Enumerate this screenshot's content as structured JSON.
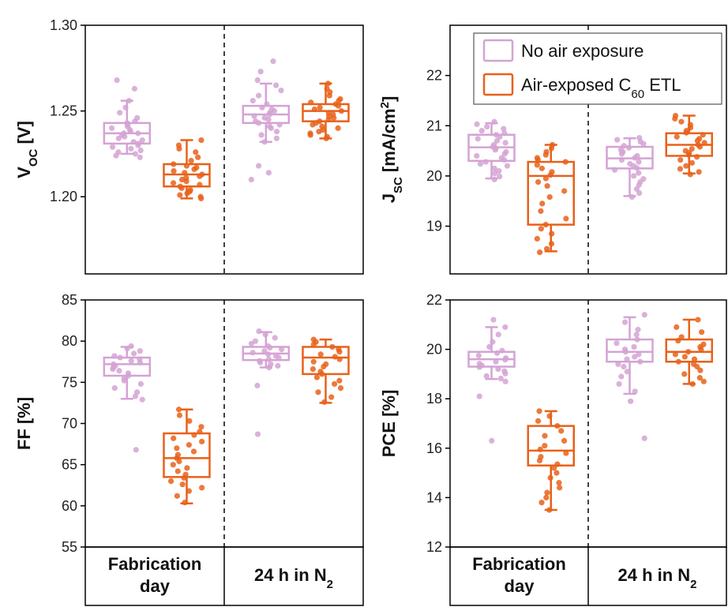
{
  "colors": {
    "no_air": "#d4a3d4",
    "air_exposed": "#e8611a",
    "axis": "#000000"
  },
  "legend": {
    "items": [
      {
        "key": "no_air",
        "label": "No air exposure"
      },
      {
        "key": "air_exposed",
        "label_pre": "Air-exposed C",
        "label_sub": "60",
        "label_post": " ETL"
      }
    ]
  },
  "x_categories": [
    {
      "line1": "Fabrication",
      "line2": "day"
    },
    {
      "line1": "24 h in N",
      "sub": "2"
    }
  ],
  "chart_data": [
    {
      "id": "voc",
      "type": "box",
      "ylabel_main": "V",
      "ylabel_sub": "OC",
      "ylabel_post": " [V]",
      "ylim": [
        1.155,
        1.3
      ],
      "yticks": [
        1.2,
        1.25,
        1.3
      ],
      "ytick_labels": [
        "1.20",
        "1.25",
        "1.30"
      ],
      "groups": [
        {
          "series": "no_air",
          "condition": 0,
          "min": 1.225,
          "q1": 1.231,
          "median": 1.237,
          "q3": 1.243,
          "max": 1.256,
          "points": [
            1.268,
            1.263,
            1.256,
            1.252,
            1.249,
            1.246,
            1.244,
            1.243,
            1.242,
            1.241,
            1.24,
            1.239,
            1.238,
            1.237,
            1.237,
            1.236,
            1.235,
            1.234,
            1.233,
            1.232,
            1.231,
            1.23,
            1.229,
            1.228,
            1.227,
            1.226,
            1.225,
            1.224,
            1.223
          ]
        },
        {
          "series": "air_exposed",
          "condition": 0,
          "min": 1.199,
          "q1": 1.206,
          "median": 1.213,
          "q3": 1.219,
          "max": 1.233,
          "points": [
            1.233,
            1.23,
            1.228,
            1.226,
            1.223,
            1.221,
            1.219,
            1.218,
            1.217,
            1.216,
            1.215,
            1.214,
            1.213,
            1.212,
            1.211,
            1.21,
            1.209,
            1.208,
            1.207,
            1.206,
            1.205,
            1.204,
            1.203,
            1.202,
            1.201,
            1.2,
            1.199
          ]
        },
        {
          "series": "no_air",
          "condition": 1,
          "min": 1.232,
          "q1": 1.243,
          "median": 1.248,
          "q3": 1.253,
          "max": 1.266,
          "points": [
            1.279,
            1.273,
            1.268,
            1.265,
            1.262,
            1.259,
            1.256,
            1.254,
            1.252,
            1.251,
            1.25,
            1.249,
            1.248,
            1.247,
            1.246,
            1.245,
            1.244,
            1.243,
            1.242,
            1.241,
            1.24,
            1.238,
            1.236,
            1.234,
            1.232,
            1.218,
            1.214,
            1.21
          ]
        },
        {
          "series": "air_exposed",
          "condition": 1,
          "min": 1.234,
          "q1": 1.244,
          "median": 1.25,
          "q3": 1.254,
          "max": 1.266,
          "points": [
            1.266,
            1.263,
            1.261,
            1.259,
            1.257,
            1.256,
            1.255,
            1.254,
            1.253,
            1.252,
            1.251,
            1.25,
            1.249,
            1.248,
            1.247,
            1.246,
            1.245,
            1.244,
            1.243,
            1.242,
            1.241,
            1.24,
            1.239,
            1.238,
            1.237,
            1.236,
            1.235,
            1.234
          ]
        }
      ]
    },
    {
      "id": "jsc",
      "type": "box",
      "ylabel_main": "J",
      "ylabel_sub": "SC",
      "ylabel_post": " [mA/cm",
      "ylabel_sup": "2",
      "ylabel_end": "]",
      "ylim": [
        18.05,
        23.0
      ],
      "yticks": [
        19,
        20,
        21,
        22
      ],
      "ytick_labels": [
        "19",
        "20",
        "21",
        "22"
      ],
      "groups": [
        {
          "series": "no_air",
          "condition": 0,
          "min": 19.95,
          "q1": 20.3,
          "median": 20.57,
          "q3": 20.82,
          "max": 21.05,
          "points": [
            21.08,
            21.03,
            20.98,
            20.94,
            20.9,
            20.85,
            20.82,
            20.78,
            20.74,
            20.7,
            20.66,
            20.62,
            20.58,
            20.55,
            20.52,
            20.48,
            20.44,
            20.4,
            20.36,
            20.32,
            20.28,
            20.24,
            20.2,
            20.15,
            20.1,
            20.05,
            19.99,
            19.93
          ]
        },
        {
          "series": "air_exposed",
          "condition": 0,
          "min": 18.5,
          "q1": 19.03,
          "median": 20.0,
          "q3": 20.28,
          "max": 20.62,
          "points": [
            20.62,
            20.55,
            20.48,
            20.42,
            20.36,
            20.32,
            20.28,
            20.22,
            20.15,
            20.08,
            20.02,
            19.95,
            19.88,
            19.8,
            19.7,
            19.58,
            19.45,
            19.3,
            19.15,
            19.03,
            18.95,
            18.85,
            18.75,
            18.65,
            18.55,
            18.48
          ]
        },
        {
          "series": "no_air",
          "condition": 1,
          "min": 19.6,
          "q1": 20.15,
          "median": 20.35,
          "q3": 20.58,
          "max": 20.75,
          "points": [
            20.76,
            20.72,
            20.68,
            20.64,
            20.6,
            20.56,
            20.52,
            20.48,
            20.44,
            20.4,
            20.36,
            20.32,
            20.28,
            20.24,
            20.2,
            20.16,
            20.12,
            20.06,
            20.0,
            19.94,
            19.88,
            19.82,
            19.74,
            19.66,
            19.58
          ]
        },
        {
          "series": "air_exposed",
          "condition": 1,
          "min": 20.05,
          "q1": 20.4,
          "median": 20.62,
          "q3": 20.85,
          "max": 21.2,
          "points": [
            21.2,
            21.14,
            21.08,
            21.02,
            20.96,
            20.9,
            20.86,
            20.82,
            20.78,
            20.74,
            20.7,
            20.66,
            20.62,
            20.58,
            20.54,
            20.5,
            20.46,
            20.42,
            20.38,
            20.32,
            20.26,
            20.2,
            20.14,
            20.08,
            20.03
          ]
        }
      ]
    },
    {
      "id": "ff",
      "type": "box",
      "ylabel_main": "FF [%]",
      "ylim": [
        55,
        85
      ],
      "yticks": [
        55,
        60,
        65,
        70,
        75,
        80,
        85
      ],
      "ytick_labels": [
        "55",
        "60",
        "65",
        "70",
        "75",
        "80",
        "85"
      ],
      "groups": [
        {
          "series": "no_air",
          "condition": 0,
          "min": 73.0,
          "q1": 75.8,
          "median": 77.2,
          "q3": 78.0,
          "max": 79.3,
          "points": [
            79.4,
            79.1,
            78.8,
            78.5,
            78.2,
            78.0,
            77.8,
            77.6,
            77.4,
            77.2,
            77.0,
            76.8,
            76.6,
            76.4,
            76.1,
            75.8,
            75.5,
            75.2,
            74.8,
            74.3,
            73.8,
            73.3,
            72.9,
            66.8
          ]
        },
        {
          "series": "air_exposed",
          "condition": 0,
          "min": 60.3,
          "q1": 63.5,
          "median": 65.8,
          "q3": 68.8,
          "max": 71.7,
          "points": [
            71.7,
            71.0,
            70.3,
            69.6,
            69.0,
            68.6,
            68.2,
            67.8,
            67.4,
            67.0,
            66.6,
            66.2,
            65.8,
            65.4,
            65.0,
            64.6,
            64.2,
            63.8,
            63.4,
            63.0,
            62.6,
            62.2,
            61.8,
            61.2,
            60.4
          ]
        },
        {
          "series": "no_air",
          "condition": 1,
          "min": 76.8,
          "q1": 77.7,
          "median": 78.5,
          "q3": 79.3,
          "max": 81.1,
          "points": [
            81.2,
            80.8,
            80.4,
            80.0,
            79.7,
            79.4,
            79.2,
            79.0,
            78.8,
            78.6,
            78.4,
            78.2,
            78.0,
            77.8,
            77.6,
            77.4,
            77.2,
            77.0,
            76.8,
            74.6,
            68.7
          ]
        },
        {
          "series": "air_exposed",
          "condition": 1,
          "min": 72.5,
          "q1": 76.0,
          "median": 78.0,
          "q3": 79.3,
          "max": 80.2,
          "points": [
            80.2,
            79.9,
            79.6,
            79.3,
            79.0,
            78.7,
            78.4,
            78.1,
            77.8,
            77.5,
            77.2,
            76.9,
            76.6,
            76.3,
            76.0,
            75.6,
            75.2,
            74.8,
            74.3,
            73.8,
            73.2,
            72.6
          ]
        }
      ]
    },
    {
      "id": "pce",
      "type": "box",
      "ylabel_main": "PCE [%]",
      "ylim": [
        12,
        22
      ],
      "yticks": [
        12,
        14,
        16,
        18,
        20,
        22
      ],
      "ytick_labels": [
        "12",
        "14",
        "16",
        "18",
        "20",
        "22"
      ],
      "groups": [
        {
          "series": "no_air",
          "condition": 0,
          "min": 18.8,
          "q1": 19.3,
          "median": 19.6,
          "q3": 19.9,
          "max": 20.9,
          "points": [
            21.2,
            20.9,
            20.6,
            20.3,
            20.1,
            19.95,
            19.85,
            19.75,
            19.65,
            19.58,
            19.5,
            19.42,
            19.35,
            19.28,
            19.2,
            19.12,
            19.02,
            18.92,
            18.82,
            18.7,
            18.1,
            16.3
          ]
        },
        {
          "series": "air_exposed",
          "condition": 0,
          "min": 13.5,
          "q1": 15.3,
          "median": 15.9,
          "q3": 16.9,
          "max": 17.5,
          "points": [
            17.5,
            17.3,
            17.1,
            16.9,
            16.7,
            16.5,
            16.3,
            16.1,
            15.95,
            15.8,
            15.65,
            15.5,
            15.35,
            15.2,
            15.0,
            14.8,
            14.6,
            14.4,
            14.2,
            14.0,
            13.8,
            13.5
          ]
        },
        {
          "series": "no_air",
          "condition": 1,
          "min": 18.2,
          "q1": 19.5,
          "median": 19.9,
          "q3": 20.4,
          "max": 21.3,
          "points": [
            21.4,
            21.1,
            20.8,
            20.6,
            20.4,
            20.25,
            20.1,
            20.0,
            19.9,
            19.8,
            19.7,
            19.6,
            19.5,
            19.4,
            19.3,
            19.1,
            18.9,
            18.6,
            18.3,
            17.9,
            16.4
          ]
        },
        {
          "series": "air_exposed",
          "condition": 1,
          "min": 18.6,
          "q1": 19.5,
          "median": 19.9,
          "q3": 20.4,
          "max": 21.2,
          "points": [
            21.2,
            20.9,
            20.7,
            20.5,
            20.35,
            20.2,
            20.1,
            20.0,
            19.9,
            19.8,
            19.7,
            19.6,
            19.5,
            19.4,
            19.3,
            19.15,
            19.0,
            18.85,
            18.7,
            18.6
          ]
        }
      ]
    }
  ]
}
